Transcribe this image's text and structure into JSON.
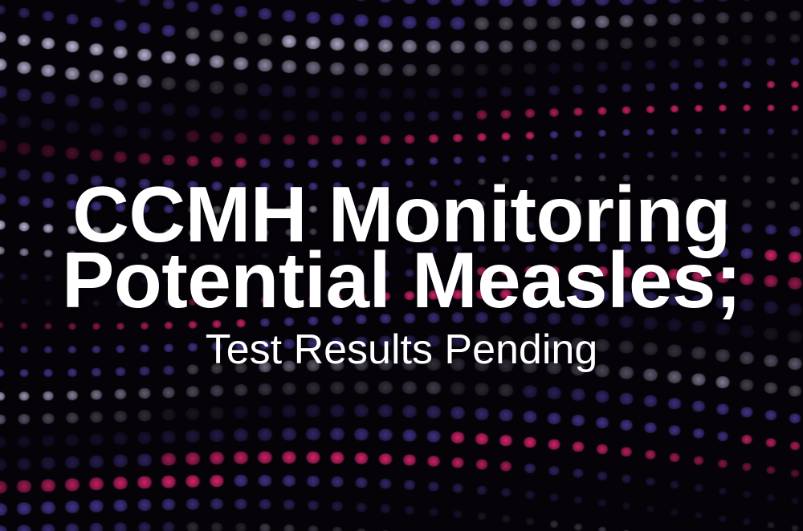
{
  "headline": {
    "line1": "CCMH Monitoring",
    "line2": "Potential Measles;",
    "subtitle": "Test Results Pending"
  },
  "background": {
    "style": "dotted-light-wave",
    "colors": {
      "base": "#050308",
      "violet": "#4a3a9a",
      "lavender": "#d8cff5",
      "pink": "#f0287a",
      "gray": "#6a6470"
    }
  }
}
